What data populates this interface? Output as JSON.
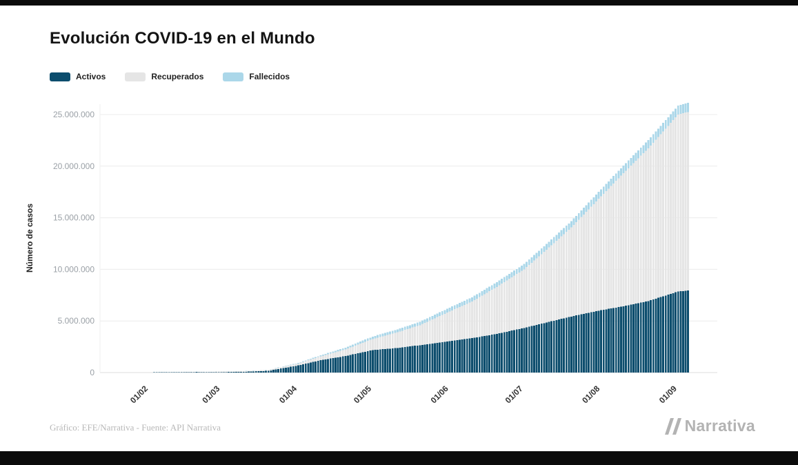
{
  "title": "Evolución COVID-19 en el Mundo",
  "legend": [
    {
      "label": "Activos",
      "color": "#0c4d6d"
    },
    {
      "label": "Recuperados",
      "color": "#e5e5e5"
    },
    {
      "label": "Fallecidos",
      "color": "#abd7e9"
    }
  ],
  "chart_data": {
    "type": "bar",
    "stacked": true,
    "title": "Evolución COVID-19 en el Mundo",
    "ylabel": "Número de casos",
    "xlabel": "",
    "ylim": [
      0,
      26000000
    ],
    "grid": "horizontal",
    "legend_position": "top-left",
    "yticks": [
      0,
      5000000,
      10000000,
      15000000,
      20000000,
      25000000
    ],
    "ytick_labels": [
      "0",
      "5.000.000",
      "10.000.000",
      "15.000.000",
      "20.000.000",
      "25.000.000"
    ],
    "xtick_labels": [
      "01/02",
      "01/03",
      "01/04",
      "01/05",
      "01/06",
      "01/07",
      "01/08",
      "01/09"
    ],
    "xticks_days": [
      0,
      29,
      60,
      90,
      121,
      151,
      182,
      213
    ],
    "day_range": [
      -10,
      217
    ],
    "series_order_bottom_to_top": [
      "Activos",
      "Recuperados",
      "Fallecidos"
    ],
    "samples": [
      {
        "day": -10,
        "date": "22/01",
        "activos": 500,
        "recuperados": 30,
        "fallecidos": 17
      },
      {
        "day": 0,
        "date": "01/02",
        "activos": 11200,
        "recuperados": 300,
        "fallecidos": 260
      },
      {
        "day": 9,
        "date": "10/02",
        "activos": 37100,
        "recuperados": 3700,
        "fallecidos": 1020
      },
      {
        "day": 19,
        "date": "20/02",
        "activos": 50200,
        "recuperados": 20600,
        "fallecidos": 2360
      },
      {
        "day": 29,
        "date": "01/03",
        "activos": 41200,
        "recuperados": 45600,
        "fallecidos": 3050
      },
      {
        "day": 38,
        "date": "10/03",
        "activos": 70700,
        "recuperados": 62700,
        "fallecidos": 4380
      },
      {
        "day": 48,
        "date": "20/03",
        "activos": 170000,
        "recuperados": 88000,
        "fallecidos": 11400
      },
      {
        "day": 60,
        "date": "01/04",
        "activos": 690000,
        "recuperados": 195000,
        "fallecidos": 47200
      },
      {
        "day": 69,
        "date": "10/04",
        "activos": 1190000,
        "recuperados": 375000,
        "fallecidos": 103000
      },
      {
        "day": 79,
        "date": "20/04",
        "activos": 1600000,
        "recuperados": 645000,
        "fallecidos": 170000
      },
      {
        "day": 90,
        "date": "01/05",
        "activos": 2180000,
        "recuperados": 1070000,
        "fallecidos": 239000
      },
      {
        "day": 99,
        "date": "10/05",
        "activos": 2360000,
        "recuperados": 1470000,
        "fallecidos": 283000
      },
      {
        "day": 109,
        "date": "20/05",
        "activos": 2650000,
        "recuperados": 1940000,
        "fallecidos": 326000
      },
      {
        "day": 121,
        "date": "01/06",
        "activos": 3040000,
        "recuperados": 2880000,
        "fallecidos": 375000
      },
      {
        "day": 130,
        "date": "10/06",
        "activos": 3330000,
        "recuperados": 3550000,
        "fallecidos": 413000
      },
      {
        "day": 140,
        "date": "20/06",
        "activos": 3750000,
        "recuperados": 4550000,
        "fallecidos": 463000
      },
      {
        "day": 151,
        "date": "01/07",
        "activos": 4320000,
        "recuperados": 5690000,
        "fallecidos": 513000
      },
      {
        "day": 160,
        "date": "10/07",
        "activos": 4850000,
        "recuperados": 7050000,
        "fallecidos": 560000
      },
      {
        "day": 170,
        "date": "20/07",
        "activos": 5430000,
        "recuperados": 8630000,
        "fallecidos": 612000
      },
      {
        "day": 182,
        "date": "01/08",
        "activos": 6040000,
        "recuperados": 11040000,
        "fallecidos": 684000
      },
      {
        "day": 191,
        "date": "10/08",
        "activos": 6420000,
        "recuperados": 12900000,
        "fallecidos": 737000
      },
      {
        "day": 201,
        "date": "20/08",
        "activos": 6930000,
        "recuperados": 14800000,
        "fallecidos": 793000
      },
      {
        "day": 213,
        "date": "01/09",
        "activos": 7850000,
        "recuperados": 17150000,
        "fallecidos": 859000
      },
      {
        "day": 217,
        "date": "05/09",
        "activos": 7950000,
        "recuperados": 17300000,
        "fallecidos": 872000
      }
    ]
  },
  "footer": {
    "credit": "Gráfico: EFE/Narrativa - Fuente: API Narrativa",
    "brand": "Narrativa"
  }
}
